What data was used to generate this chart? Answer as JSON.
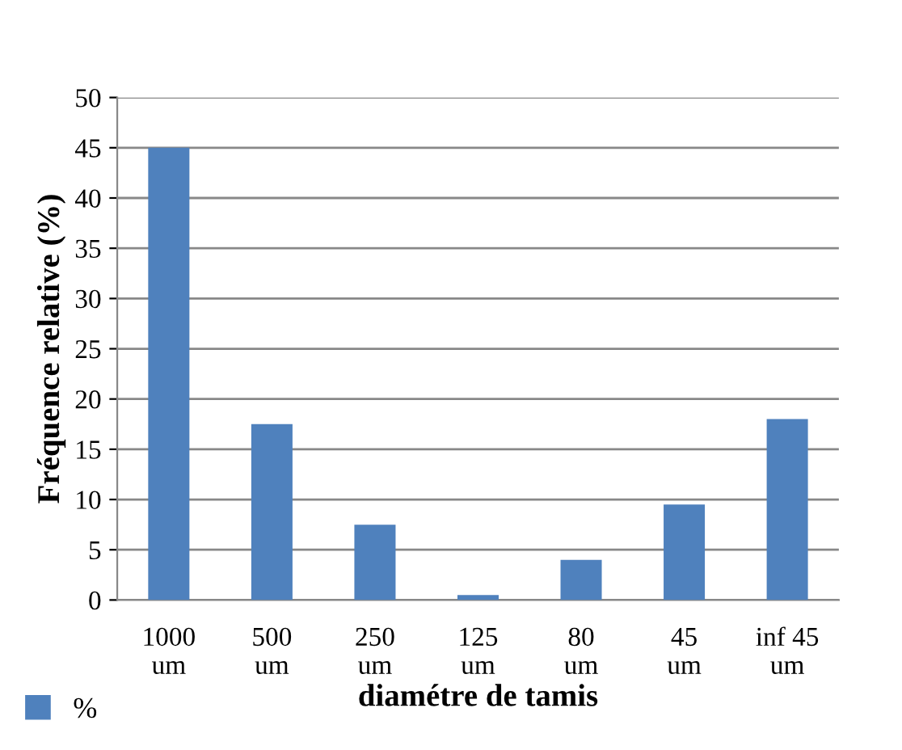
{
  "chart_data": {
    "type": "bar",
    "xlabel": "diamétre de tamis",
    "ylabel": "Fréquence relative (%)",
    "categories": [
      "1000 um",
      "500 um",
      "250 um",
      "125 um",
      "80 um",
      "45 um",
      "inf 45 um"
    ],
    "series": [
      {
        "name": "%",
        "color": "#4f81bd",
        "values": [
          45,
          17.5,
          7.5,
          0.5,
          4,
          9.5,
          18
        ]
      }
    ],
    "ylim": [
      0,
      50
    ],
    "yticks": [
      0,
      5,
      10,
      15,
      20,
      25,
      30,
      35,
      40,
      45,
      50
    ],
    "grid": "y",
    "legend": "bottom left"
  }
}
